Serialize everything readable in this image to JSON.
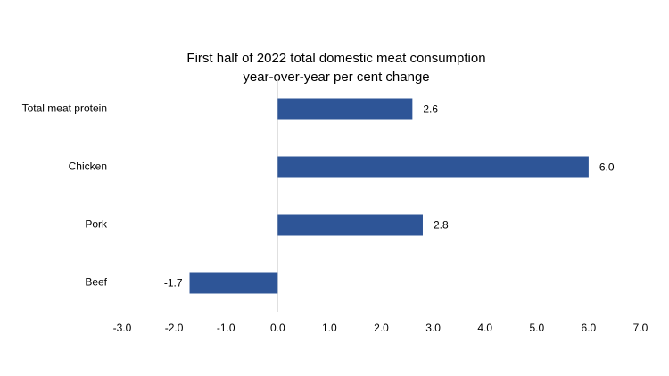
{
  "chart_data": {
    "type": "hbar",
    "title": [
      "First half of 2022 total domestic meat consumption",
      "year-over-year per cent change"
    ],
    "categories": [
      "Total meat protein",
      "Chicken",
      "Pork",
      "Beef"
    ],
    "values": [
      2.6,
      6.0,
      2.8,
      -1.7
    ],
    "value_labels": [
      "2.6",
      "6.0",
      "2.8",
      "-1.7"
    ],
    "color": "#2e5597",
    "xlim": [
      -3,
      7
    ],
    "xticks": [
      {
        "value": -3,
        "label": "-3.0"
      },
      {
        "value": -2,
        "label": "-2.0"
      },
      {
        "value": -1,
        "label": "-1.0"
      },
      {
        "value": 0,
        "label": "0.0"
      },
      {
        "value": 1,
        "label": "1.0"
      },
      {
        "value": 2,
        "label": "2.0"
      },
      {
        "value": 3,
        "label": "3.0"
      },
      {
        "value": 4,
        "label": "4.0"
      },
      {
        "value": 5,
        "label": "5.0"
      },
      {
        "value": 6,
        "label": "6.0"
      },
      {
        "value": 7,
        "label": "7.0"
      }
    ],
    "grid": false
  }
}
